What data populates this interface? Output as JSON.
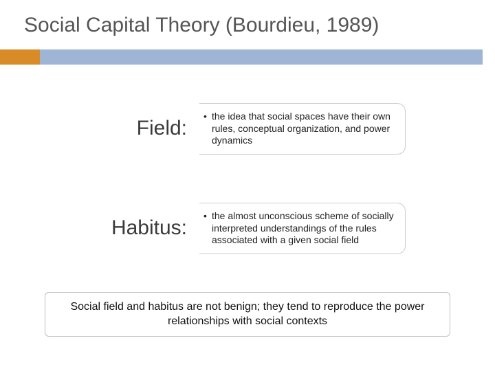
{
  "title": "Social Capital Theory (Bourdieu, 1989)",
  "colors": {
    "bar_orange": "#d98b28",
    "bar_blue": "#9fb5d6",
    "title_text": "#555555",
    "body_text": "#222222",
    "box_border": "#cccccc",
    "bottom_border": "#bfbfbf",
    "background": "#ffffff"
  },
  "fonts": {
    "title_size": 30,
    "term_size": 30,
    "definition_size": 14,
    "bottom_size": 16
  },
  "concepts": [
    {
      "term": "Field:",
      "definition": "the idea that social spaces have their own rules, conceptual organization, and power dynamics"
    },
    {
      "term": "Habitus:",
      "definition": "the almost unconscious scheme of socially interpreted understandings of the rules associated with a given social field"
    }
  ],
  "summary": "Social field and habitus are not benign; they tend to reproduce the power relationships with social contexts"
}
